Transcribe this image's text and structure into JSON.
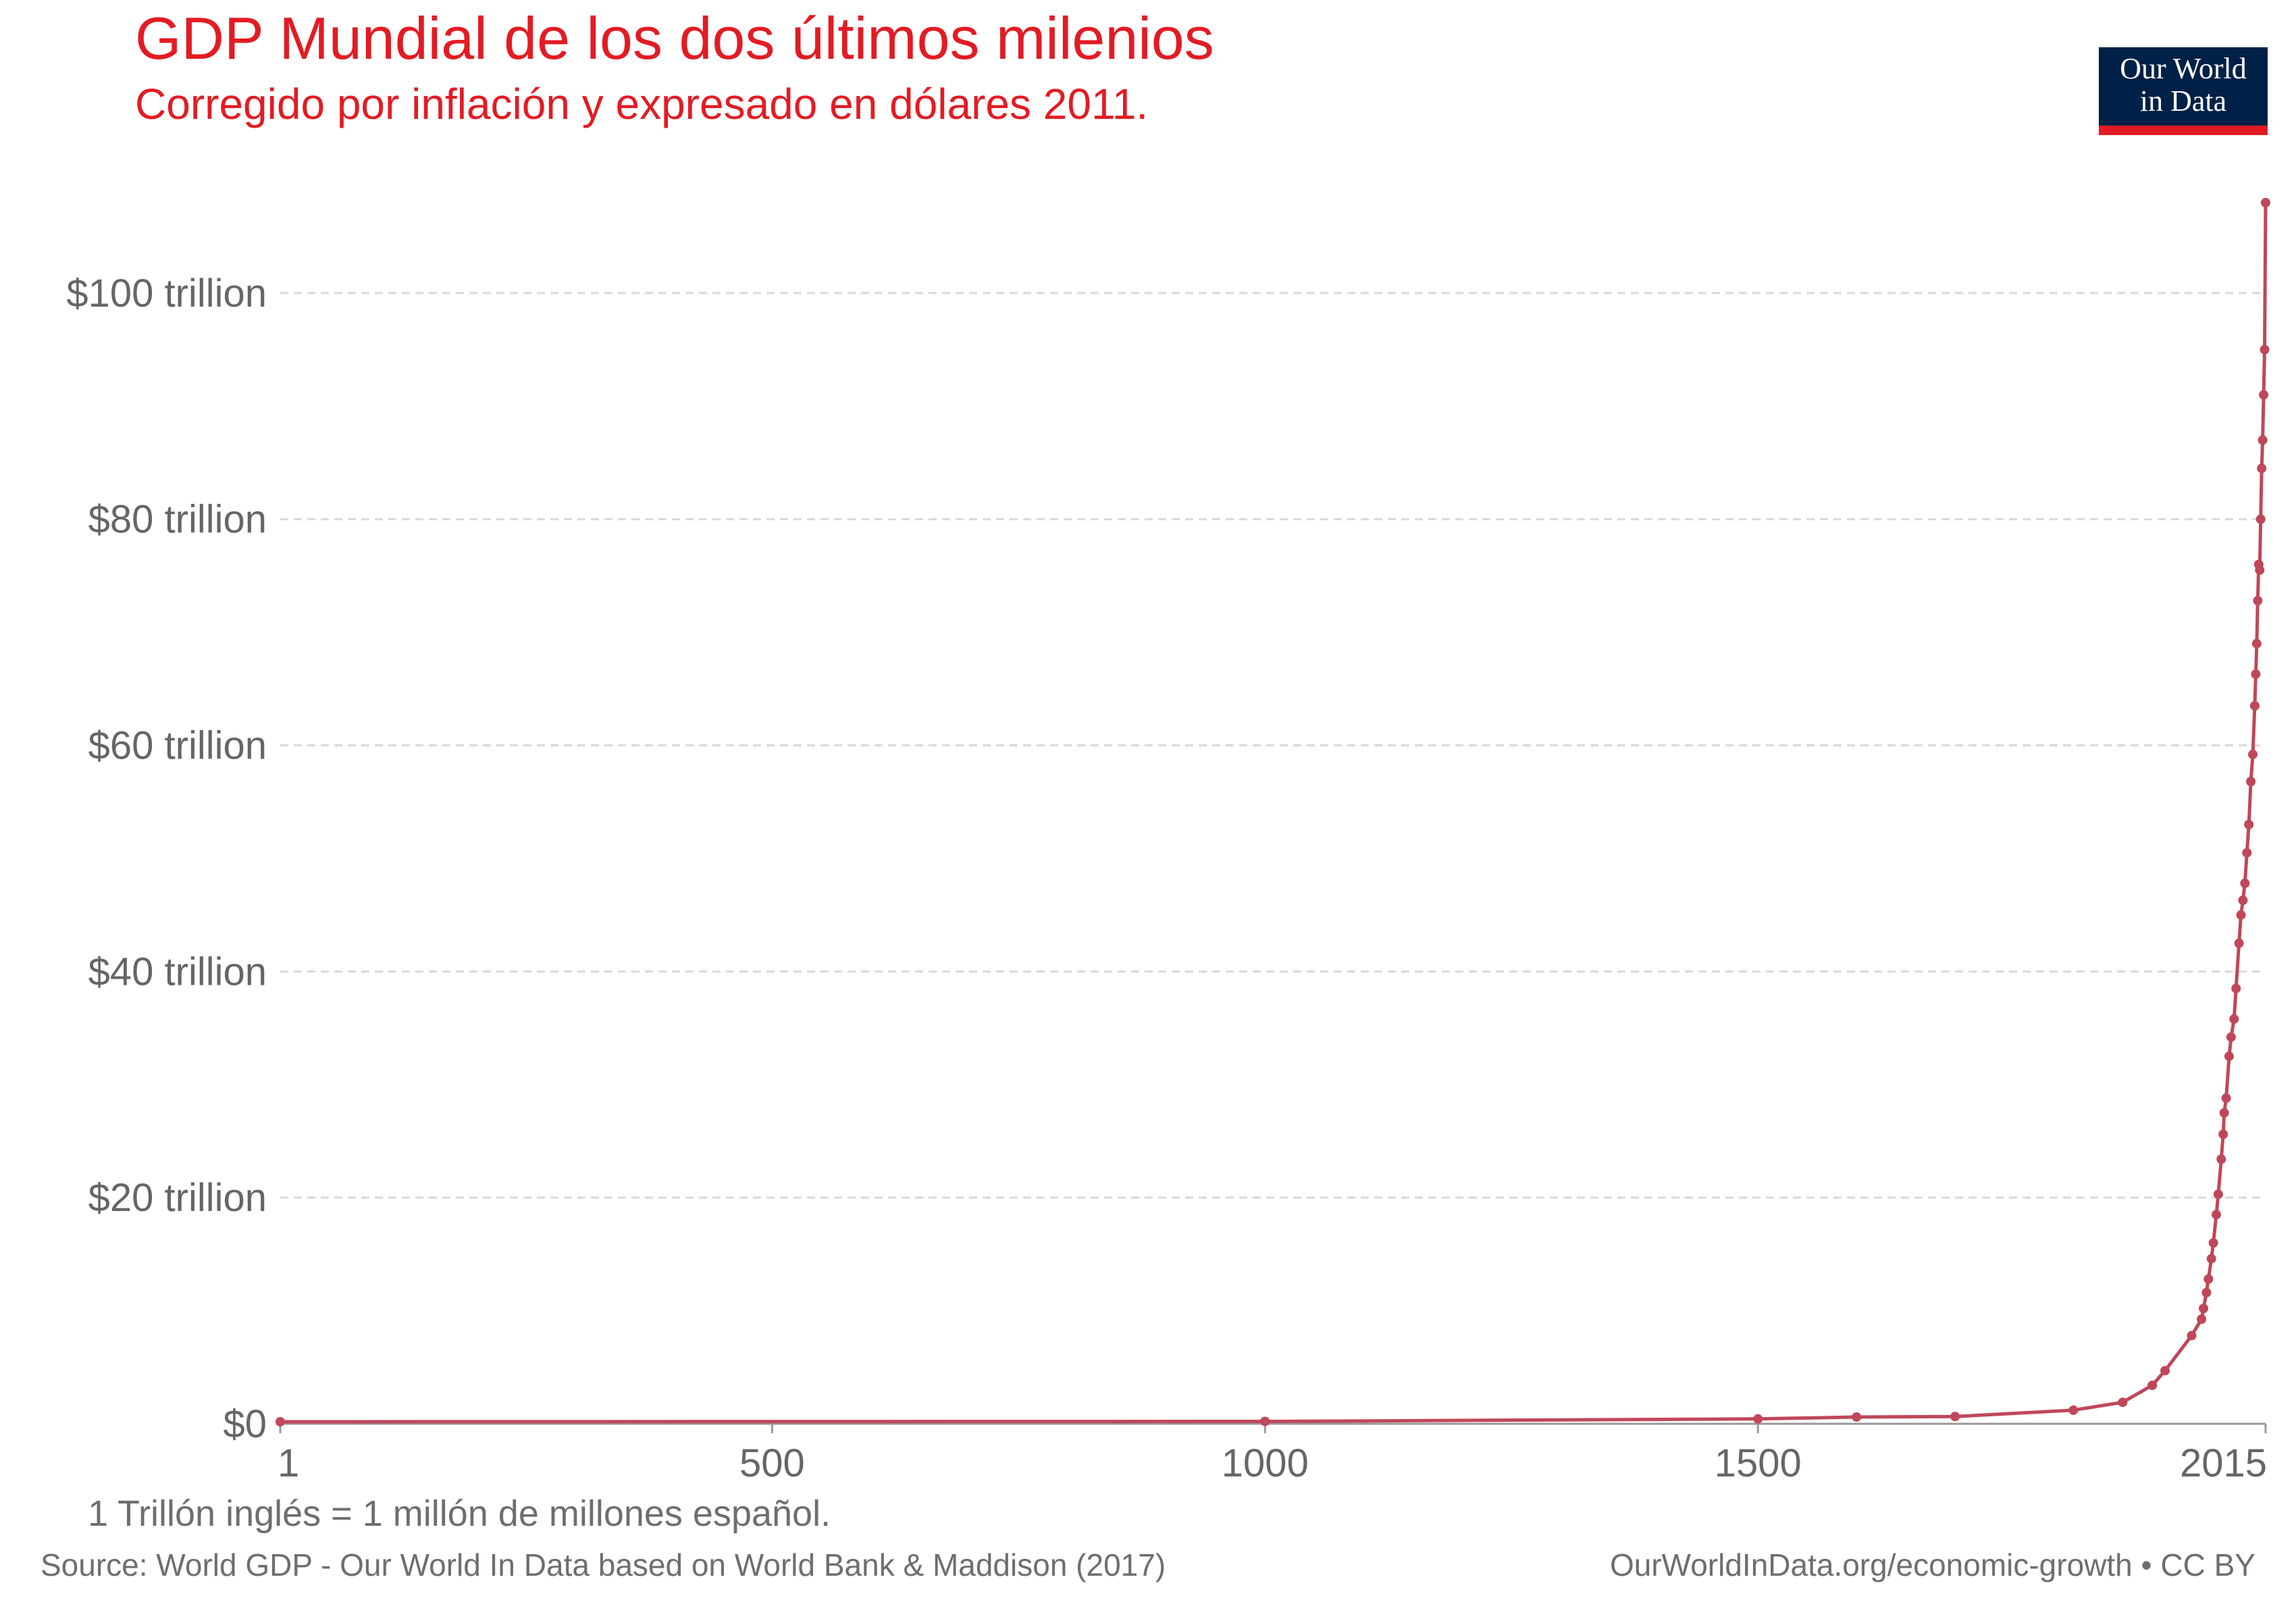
{
  "header": {
    "title": "GDP Mundial de los dos últimos milenios",
    "subtitle": "Corregido por inflación y expresado en dólares 2011."
  },
  "logo": {
    "line1": "Our World",
    "line2": "in Data"
  },
  "footer": {
    "note": "1 Trillón inglés = 1 millón de millones español.",
    "source": "Source: World GDP - Our World In Data based on World Bank & Maddison (2017)",
    "credit": "OurWorldInData.org/economic-growth • CC BY"
  },
  "colors": {
    "title": "#e31b23",
    "line": "#c0475a",
    "grid": "#d9d9d9",
    "axis_text": "#666666",
    "logo_bg": "#002147",
    "logo_accent": "#e31b23"
  },
  "chart_data": {
    "type": "line",
    "title": "",
    "xlabel": "",
    "ylabel": "",
    "xlim": [
      1,
      2015
    ],
    "ylim": [
      0,
      108
    ],
    "y_unit": "trillion USD (2011)",
    "grid": true,
    "x_ticks": [
      {
        "value": 1,
        "label": "1"
      },
      {
        "value": 500,
        "label": "500"
      },
      {
        "value": 1000,
        "label": "1000"
      },
      {
        "value": 1500,
        "label": "1500"
      },
      {
        "value": 2015,
        "label": "2015"
      }
    ],
    "y_ticks": [
      {
        "value": 0,
        "label": "$0"
      },
      {
        "value": 20,
        "label": "$20 trillion"
      },
      {
        "value": 40,
        "label": "$40 trillion"
      },
      {
        "value": 60,
        "label": "$60 trillion"
      },
      {
        "value": 80,
        "label": "$80 trillion"
      },
      {
        "value": 100,
        "label": "$100 trillion"
      }
    ],
    "series": [
      {
        "x": [
          1,
          1000,
          1500,
          1600,
          1700,
          1820,
          1870,
          1900,
          1913,
          1940,
          1950,
          1952,
          1955,
          1957,
          1960,
          1962,
          1965,
          1967,
          1970,
          1972,
          1973,
          1975,
          1978,
          1980,
          1983,
          1985,
          1988,
          1990,
          1992,
          1994,
          1996,
          1998,
          2000,
          2002,
          2004,
          2005,
          2006,
          2007,
          2008,
          2009,
          2010,
          2011,
          2012,
          2013,
          2014,
          2015
        ],
        "y": [
          0.18,
          0.21,
          0.43,
          0.6,
          0.64,
          1.2,
          1.9,
          3.4,
          4.7,
          7.8,
          9.25,
          10.2,
          11.6,
          12.8,
          14.6,
          16.0,
          18.5,
          20.3,
          23.4,
          25.6,
          27.5,
          28.8,
          32.5,
          34.2,
          35.8,
          38.5,
          42.5,
          45.0,
          46.3,
          47.8,
          50.5,
          53.0,
          56.8,
          59.2,
          63.5,
          66.3,
          69.0,
          72.8,
          76.0,
          75.5,
          80.0,
          84.5,
          87.0,
          91.0,
          95.0,
          108.0
        ]
      }
    ]
  }
}
